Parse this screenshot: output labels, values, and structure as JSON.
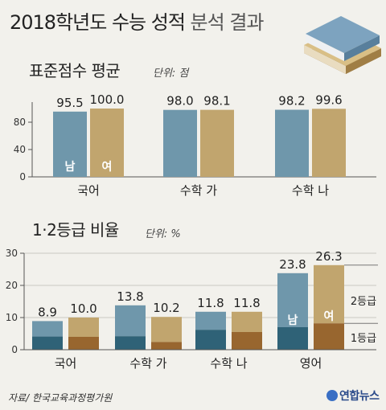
{
  "header": {
    "title_bold": "2018학년도 수능 성적",
    "title_light": "분석 결과"
  },
  "colors": {
    "male": "#6f97ab",
    "female": "#c1a56e",
    "male_dark": "#2f6277",
    "female_dark": "#98662f",
    "background": "#f2f1ec"
  },
  "chart_data": [
    {
      "type": "bar",
      "title": "표준점수 평균",
      "unit": "단위: 점",
      "categories": [
        "국어",
        "수학 가",
        "수학 나"
      ],
      "series": [
        {
          "name": "남",
          "values": [
            95.5,
            98.0,
            98.2
          ]
        },
        {
          "name": "여",
          "values": [
            100.0,
            98.1,
            99.6
          ]
        }
      ],
      "ylim": [
        0,
        100
      ],
      "yticks": [
        0,
        40,
        80
      ]
    },
    {
      "type": "bar",
      "title": "1·2등급 비율",
      "unit": "단위: %",
      "categories": [
        "국어",
        "수학 가",
        "수학 나",
        "영어"
      ],
      "series": [
        {
          "name": "남",
          "totals": [
            8.9,
            13.8,
            11.8,
            23.8
          ],
          "grade1": [
            4.1,
            4.2,
            6.2,
            7.0
          ]
        },
        {
          "name": "여",
          "totals": [
            10.0,
            10.2,
            11.8,
            26.3
          ],
          "grade1": [
            4.0,
            2.4,
            5.5,
            8.2
          ]
        }
      ],
      "ylim": [
        0,
        30
      ],
      "yticks": [
        0,
        10,
        20,
        30
      ],
      "annotations": [
        "2등급",
        "1등급"
      ]
    }
  ],
  "footer": {
    "source": "자료/ 한국교육과정평가원",
    "logo": "연합뉴스"
  }
}
